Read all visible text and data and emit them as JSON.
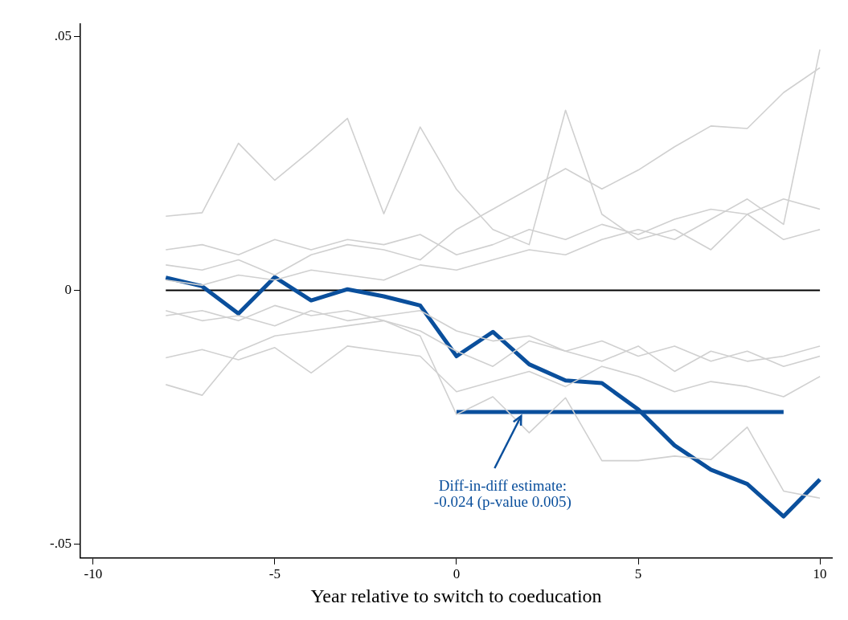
{
  "chart_data": {
    "type": "line",
    "xlabel": "Year relative to switch to coeducation",
    "x": [
      -8,
      -7,
      -6,
      -5,
      -4,
      -3,
      -2,
      -1,
      0,
      1,
      2,
      3,
      4,
      5,
      6,
      7,
      8,
      9,
      10
    ],
    "xlim": [
      -10.35,
      10.33
    ],
    "xticks": [
      -10,
      -5,
      0,
      5,
      10
    ],
    "ylim": [
      -0.0528,
      0.0525
    ],
    "yticks": [
      {
        "value": 0.05,
        "label": ".05"
      },
      0,
      {
        "value": -0.05,
        "label": "-.05"
      }
    ],
    "grid": false,
    "legend": false,
    "marker": "none",
    "line_style": "solid",
    "series": [
      {
        "color": "#d0d0d0",
        "values": [
          0.0146,
          0.0153,
          0.029,
          0.0217,
          0.0276,
          0.0339,
          0.0151,
          0.0322,
          0.0199,
          0.012,
          0.009,
          0.0355,
          0.015,
          0.01,
          0.012,
          0.008,
          0.015,
          0.01,
          0.012
        ]
      },
      {
        "color": "#d0d0d0",
        "values": [
          0.005,
          0.004,
          0.006,
          0.003,
          0.007,
          0.009,
          0.008,
          0.006,
          0.012,
          0.016,
          0.02,
          0.024,
          0.02,
          0.0237,
          0.0283,
          0.0324,
          0.0319,
          0.039,
          0.0439
        ]
      },
      {
        "color": "#d0d0d0",
        "values": [
          -0.0133,
          -0.0117,
          -0.0137,
          -0.0113,
          -0.0163,
          -0.011,
          -0.012,
          -0.013,
          -0.02,
          -0.018,
          -0.016,
          -0.019,
          -0.015,
          -0.017,
          -0.02,
          -0.018,
          -0.019,
          -0.021,
          -0.017
        ]
      },
      {
        "color": "#d0d0d0",
        "values": [
          -0.0186,
          -0.0207,
          -0.012,
          -0.009,
          -0.008,
          -0.007,
          -0.006,
          -0.008,
          -0.012,
          -0.015,
          -0.01,
          -0.012,
          -0.014,
          -0.011,
          -0.016,
          -0.012,
          -0.014,
          -0.013,
          -0.011
        ]
      },
      {
        "color": "#d0d0d0",
        "values": [
          -0.005,
          -0.004,
          -0.006,
          -0.003,
          -0.005,
          -0.004,
          -0.006,
          -0.009,
          -0.0245,
          -0.021,
          -0.0281,
          -0.0212,
          -0.0336,
          -0.0336,
          -0.0327,
          -0.0334,
          -0.027,
          -0.0396,
          -0.041
        ]
      },
      {
        "color": "#d0d0d0",
        "values": [
          0.002,
          0.001,
          0.003,
          0.002,
          0.004,
          0.003,
          0.002,
          0.005,
          0.004,
          0.006,
          0.008,
          0.007,
          0.01,
          0.012,
          0.01,
          0.014,
          0.018,
          0.013,
          0.0475
        ]
      },
      {
        "color": "#d0d0d0",
        "values": [
          0.008,
          0.009,
          0.007,
          0.01,
          0.008,
          0.01,
          0.009,
          0.011,
          0.007,
          0.009,
          0.012,
          0.01,
          0.013,
          0.011,
          0.014,
          0.016,
          0.015,
          0.018,
          0.016
        ]
      },
      {
        "color": "#d0d0d0",
        "values": [
          -0.004,
          -0.006,
          -0.005,
          -0.007,
          -0.004,
          -0.006,
          -0.005,
          -0.004,
          -0.008,
          -0.01,
          -0.009,
          -0.012,
          -0.01,
          -0.013,
          -0.011,
          -0.014,
          -0.012,
          -0.015,
          -0.013
        ]
      },
      {
        "color": "#0a4f9c",
        "values": [
          0.0025,
          0.0008,
          -0.0046,
          0.0026,
          -0.002,
          0.0002,
          -0.0012,
          -0.003,
          -0.013,
          -0.0082,
          -0.0146,
          -0.0178,
          -0.0183,
          -0.0235,
          -0.0306,
          -0.0354,
          -0.0382,
          -0.0446,
          -0.0373
        ]
      },
      {
        "color": "#0a4f9c",
        "x": [
          0,
          9
        ],
        "values": [
          -0.024,
          -0.024
        ]
      }
    ],
    "ref_lines": [
      {
        "axis": "y",
        "value": 0,
        "color": "#000000"
      }
    ],
    "annotations": [
      {
        "text": "Diff-in-diff estimate:\n-0.024 (p-value 0.005)",
        "x": 1.8,
        "y": -0.024
      }
    ]
  }
}
